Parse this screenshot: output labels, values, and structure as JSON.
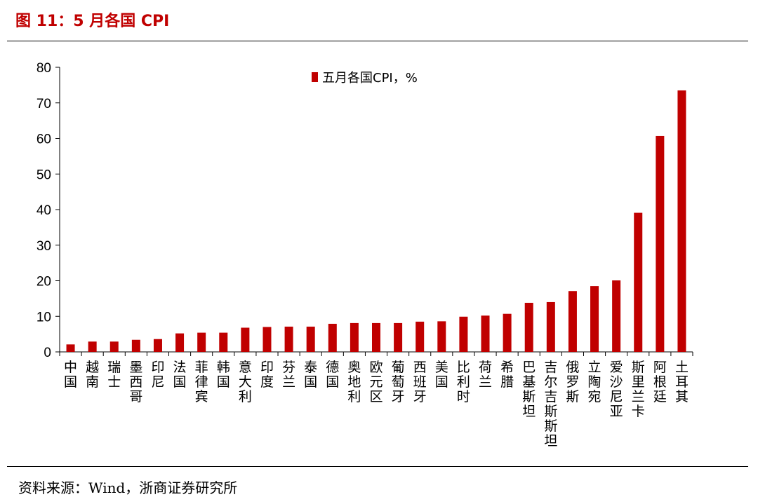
{
  "figure_title": "图 11：5 月各国 CPI",
  "source_note": "资料来源：Wind，浙商证券研究所",
  "chart_data": {
    "type": "bar",
    "categories": [
      "中国",
      "越南",
      "瑞士",
      "墨西哥",
      "印尼",
      "法国",
      "菲律宾",
      "韩国",
      "意大利",
      "印度",
      "芬兰",
      "泰国",
      "德国",
      "奥地利",
      "欧元区",
      "葡萄牙",
      "西班牙",
      "美国",
      "比利时",
      "荷兰",
      "希腊",
      "巴基斯坦",
      "吉尔吉斯斯坦",
      "俄罗斯",
      "立陶宛",
      "爱沙尼亚",
      "斯里兰卡",
      "阿根廷",
      "土耳其"
    ],
    "series": [
      {
        "name": "五月各国CPI，%",
        "values": [
          2.1,
          2.9,
          2.9,
          3.4,
          3.6,
          5.2,
          5.4,
          5.4,
          6.8,
          7.0,
          7.1,
          7.1,
          7.9,
          8.1,
          8.1,
          8.1,
          8.5,
          8.6,
          9.9,
          10.2,
          10.7,
          13.8,
          14.0,
          17.1,
          18.5,
          20.1,
          39.1,
          60.7,
          73.5
        ],
        "color": "#c00000"
      }
    ],
    "ylim": [
      0,
      80
    ],
    "yticks": [
      0,
      10,
      20,
      30,
      40,
      50,
      60,
      70,
      80
    ],
    "legend_position": "top-center",
    "grid": false
  }
}
